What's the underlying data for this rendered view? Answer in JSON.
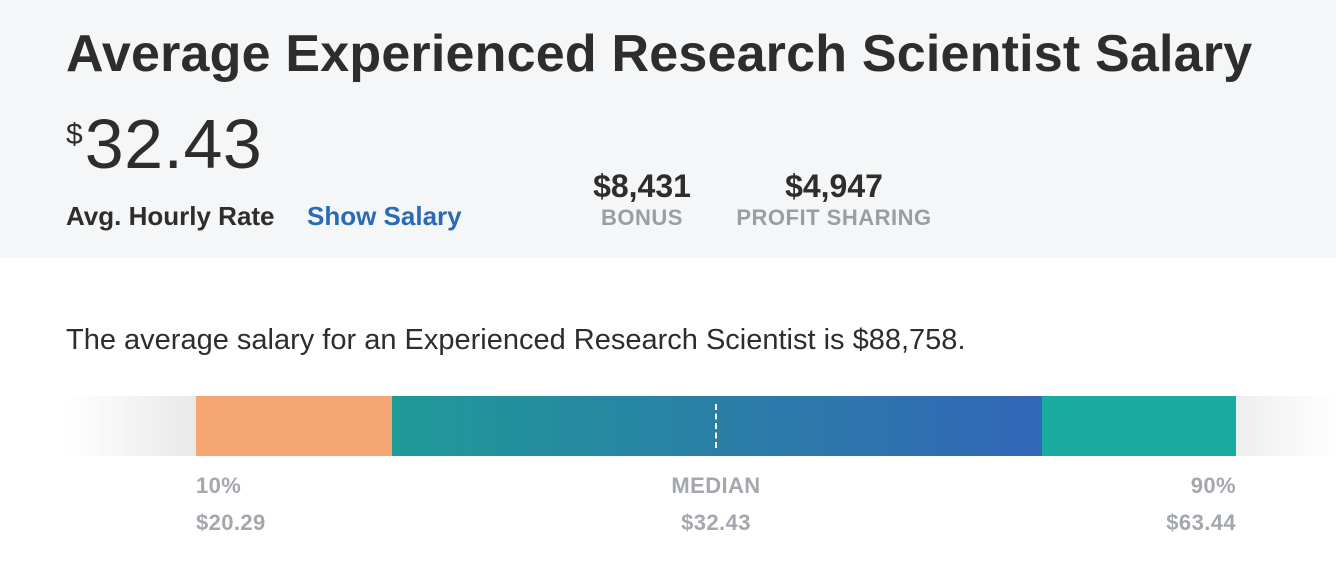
{
  "header": {
    "title": "Average Experienced Research Scientist Salary",
    "currency_symbol": "$",
    "hourly_amount": "32.43",
    "rate_label": "Avg. Hourly Rate",
    "show_salary_link": "Show Salary",
    "stats": {
      "bonus": {
        "value": "$8,431",
        "label": "BONUS"
      },
      "profit_sharing": {
        "value": "$4,947",
        "label": "PROFIT SHARING"
      }
    }
  },
  "summary": "The average salary for an Experienced Research Scientist is $88,758.",
  "range": {
    "low": {
      "percentile": "10%",
      "value": "$20.29"
    },
    "median": {
      "percentile": "MEDIAN",
      "value": "$32.43"
    },
    "high": {
      "percentile": "90%",
      "value": "$63.44"
    }
  },
  "colors": {
    "low_segment": "#f6a672",
    "mid_segment_start": "#1f9a98",
    "mid_segment_end": "#3266b8",
    "high_segment": "#19aaa0",
    "link": "#2a6bb5",
    "header_background": "#f5f6f7"
  }
}
